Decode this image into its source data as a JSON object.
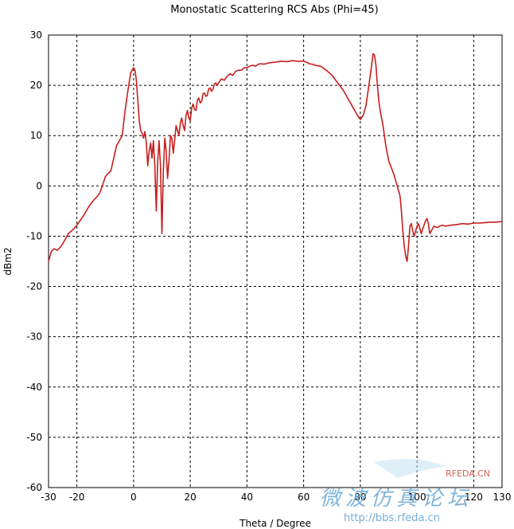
{
  "chart_data": {
    "type": "line",
    "title": "Monostatic Scattering RCS Abs (Phi=45)",
    "xlabel": "Theta / Degree",
    "ylabel": "dBm2",
    "xlim": [
      -30,
      130
    ],
    "ylim": [
      -60,
      30
    ],
    "xticks": [
      -30,
      -20,
      0,
      20,
      40,
      60,
      80,
      100,
      120,
      130
    ],
    "yticks": [
      30,
      20,
      10,
      0,
      -10,
      -20,
      -30,
      -40,
      -50,
      -60
    ],
    "grid": true,
    "series": [
      {
        "color": "#c81e1e",
        "points": [
          [
            -30,
            -15
          ],
          [
            -29,
            -13
          ],
          [
            -28,
            -12.5
          ],
          [
            -27,
            -12.8
          ],
          [
            -26,
            -12.3
          ],
          [
            -25,
            -11.5
          ],
          [
            -24,
            -10.5
          ],
          [
            -23,
            -9.5
          ],
          [
            -22,
            -9
          ],
          [
            -21,
            -8.5
          ],
          [
            -20,
            -7.8
          ],
          [
            -19,
            -7
          ],
          [
            -18,
            -6.2
          ],
          [
            -17,
            -5.3
          ],
          [
            -16,
            -4.3
          ],
          [
            -15,
            -3.5
          ],
          [
            -14,
            -2.8
          ],
          [
            -13,
            -2.2
          ],
          [
            -12,
            -1.5
          ],
          [
            -11,
            0
          ],
          [
            -10,
            1.8
          ],
          [
            -9,
            2.5
          ],
          [
            -8,
            3
          ],
          [
            -7,
            5.5
          ],
          [
            -6,
            8
          ],
          [
            -5,
            9
          ],
          [
            -4,
            10
          ],
          [
            -3,
            15
          ],
          [
            -2,
            19
          ],
          [
            -1,
            22.5
          ],
          [
            0,
            23.5
          ],
          [
            0.5,
            23
          ],
          [
            1,
            21
          ],
          [
            1.5,
            17
          ],
          [
            2,
            13
          ],
          [
            2.5,
            11
          ],
          [
            3,
            10.5
          ],
          [
            3.5,
            9.5
          ],
          [
            4,
            10.8
          ],
          [
            4.5,
            8.5
          ],
          [
            5,
            4
          ],
          [
            5.5,
            7
          ],
          [
            6,
            8.5
          ],
          [
            6.5,
            5.5
          ],
          [
            7,
            9
          ],
          [
            7.5,
            4
          ],
          [
            8,
            -5
          ],
          [
            8.5,
            5
          ],
          [
            9,
            9
          ],
          [
            9.5,
            4
          ],
          [
            10,
            -9.5
          ],
          [
            10.5,
            3
          ],
          [
            11,
            9.5
          ],
          [
            11.5,
            7
          ],
          [
            12,
            1.5
          ],
          [
            12.5,
            5
          ],
          [
            13,
            10
          ],
          [
            13.5,
            9.5
          ],
          [
            14,
            6.5
          ],
          [
            14.5,
            9
          ],
          [
            15,
            12
          ],
          [
            15.5,
            11
          ],
          [
            16,
            10
          ],
          [
            16.5,
            12.5
          ],
          [
            17,
            13.5
          ],
          [
            17.5,
            12
          ],
          [
            18,
            11
          ],
          [
            18.5,
            14
          ],
          [
            19,
            15
          ],
          [
            19.5,
            13.5
          ],
          [
            20,
            13
          ],
          [
            20.5,
            15.5
          ],
          [
            21,
            16.3
          ],
          [
            21.5,
            15.2
          ],
          [
            22,
            15
          ],
          [
            22.5,
            17
          ],
          [
            23,
            17.5
          ],
          [
            23.5,
            16.5
          ],
          [
            24,
            16.8
          ],
          [
            24.5,
            18.3
          ],
          [
            25,
            18.5
          ],
          [
            25.5,
            17.8
          ],
          [
            26,
            18
          ],
          [
            26.5,
            19.3
          ],
          [
            27,
            19.5
          ],
          [
            27.5,
            18.8
          ],
          [
            28,
            19.2
          ],
          [
            28.5,
            20.2
          ],
          [
            29,
            20.5
          ],
          [
            29.5,
            20
          ],
          [
            30,
            20.5
          ],
          [
            31,
            21.3
          ],
          [
            32,
            21
          ],
          [
            33,
            21.8
          ],
          [
            34,
            22.3
          ],
          [
            35,
            22
          ],
          [
            36,
            22.8
          ],
          [
            37,
            23
          ],
          [
            38,
            23
          ],
          [
            39,
            23.5
          ],
          [
            40,
            23.5
          ],
          [
            41,
            23.8
          ],
          [
            42,
            24
          ],
          [
            43,
            23.8
          ],
          [
            44,
            24.2
          ],
          [
            45,
            24.3
          ],
          [
            46,
            24.2
          ],
          [
            48,
            24.5
          ],
          [
            50,
            24.6
          ],
          [
            52,
            24.8
          ],
          [
            54,
            24.7
          ],
          [
            56,
            24.9
          ],
          [
            58,
            24.8
          ],
          [
            60,
            24.8
          ],
          [
            61,
            24.6
          ],
          [
            62,
            24.3
          ],
          [
            63,
            24.2
          ],
          [
            64,
            24
          ],
          [
            66,
            23.8
          ],
          [
            68,
            23
          ],
          [
            70,
            22
          ],
          [
            72,
            20.5
          ],
          [
            74,
            19
          ],
          [
            76,
            17
          ],
          [
            77,
            16
          ],
          [
            78,
            15
          ],
          [
            79,
            14
          ],
          [
            80,
            13.2
          ],
          [
            81,
            14
          ],
          [
            82,
            16
          ],
          [
            83,
            20
          ],
          [
            84,
            24
          ],
          [
            84.5,
            26.3
          ],
          [
            85,
            26
          ],
          [
            85.5,
            24
          ],
          [
            86,
            20
          ],
          [
            86.5,
            17
          ],
          [
            87,
            15
          ],
          [
            88,
            12
          ],
          [
            89,
            8
          ],
          [
            90,
            5
          ],
          [
            91,
            3.5
          ],
          [
            92,
            2
          ],
          [
            93,
            0
          ],
          [
            94,
            -2
          ],
          [
            94.5,
            -5
          ],
          [
            95,
            -9
          ],
          [
            95.5,
            -12
          ],
          [
            96,
            -14
          ],
          [
            96.5,
            -15
          ],
          [
            97,
            -12
          ],
          [
            97.5,
            -8
          ],
          [
            98,
            -7.5
          ],
          [
            98.5,
            -9
          ],
          [
            99,
            -10
          ],
          [
            99.5,
            -9
          ],
          [
            100,
            -8
          ],
          [
            100.5,
            -7.5
          ],
          [
            101,
            -8.5
          ],
          [
            101.5,
            -9.5
          ],
          [
            102,
            -8.5
          ],
          [
            103,
            -7
          ],
          [
            103.5,
            -6.5
          ],
          [
            104,
            -7.5
          ],
          [
            104.5,
            -9.5
          ],
          [
            105,
            -9
          ],
          [
            106,
            -8
          ],
          [
            107,
            -8.3
          ],
          [
            108,
            -8
          ],
          [
            109,
            -7.8
          ],
          [
            110,
            -8
          ],
          [
            112,
            -7.8
          ],
          [
            114,
            -7.7
          ],
          [
            116,
            -7.5
          ],
          [
            118,
            -7.6
          ],
          [
            120,
            -7.4
          ],
          [
            122,
            -7.4
          ],
          [
            124,
            -7.3
          ],
          [
            126,
            -7.2
          ],
          [
            128,
            -7.2
          ],
          [
            130,
            -7.1
          ]
        ]
      }
    ]
  },
  "watermark": {
    "brand": "RFEDA.CN",
    "cjk": "微波仿真论坛",
    "url": "http://bbs.rfeda.cn"
  }
}
